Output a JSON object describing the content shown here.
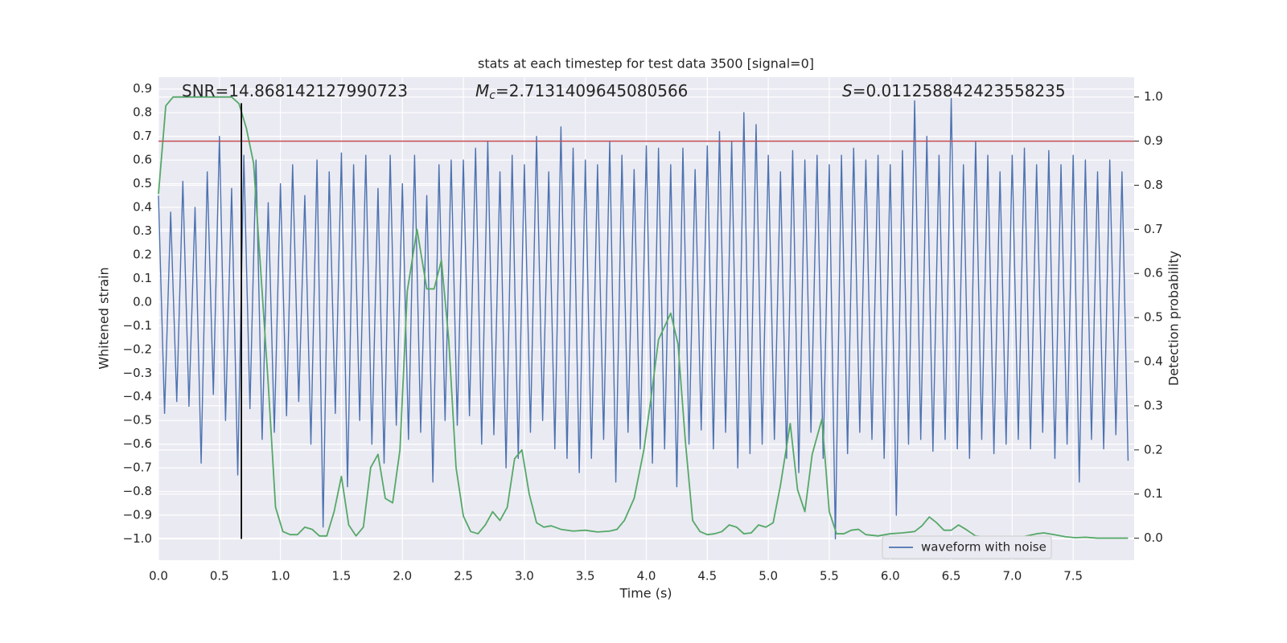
{
  "chart_data": {
    "type": "line",
    "title": "stats at each timestep for test data 3500 [signal=0]",
    "x_label": "Time (s)",
    "y_label": "Whitened strain",
    "y2_label": "Detection probability",
    "annotations": [
      {
        "text": "SNR=14.868142127990723"
      },
      {
        "symbol": "M",
        "sub": "c",
        "text": "=2.7131409645080566"
      },
      {
        "symbol": "S",
        "text": "=0.011258842423558235"
      }
    ],
    "xlim": [
      0,
      8
    ],
    "ylim": [
      -1.09,
      0.95
    ],
    "y2lim": [
      -0.05,
      1.045
    ],
    "xticks": [
      {
        "value": 0,
        "label": "0.0"
      },
      0.5,
      {
        "value": 1,
        "label": "1.0"
      },
      1.5,
      {
        "value": 2,
        "label": "2.0"
      },
      2.5,
      {
        "value": 3,
        "label": "3.0"
      },
      3.5,
      {
        "value": 4,
        "label": "4.0"
      },
      4.5,
      {
        "value": 5,
        "label": "5.0"
      },
      5.5,
      {
        "value": 6,
        "label": "6.0"
      },
      6.5,
      {
        "value": 7,
        "label": "7.0"
      },
      7.5
    ],
    "yticks": [
      {
        "value": -1,
        "label": "−1.0"
      },
      {
        "value": -0.9,
        "label": "−0.9"
      },
      {
        "value": -0.8,
        "label": "−0.8"
      },
      {
        "value": -0.7,
        "label": "−0.7"
      },
      {
        "value": -0.6,
        "label": "−0.6"
      },
      {
        "value": -0.5,
        "label": "−0.5"
      },
      {
        "value": -0.4,
        "label": "−0.4"
      },
      {
        "value": -0.3,
        "label": "−0.3"
      },
      {
        "value": -0.2,
        "label": "−0.2"
      },
      {
        "value": -0.1,
        "label": "−0.1"
      },
      {
        "value": 0,
        "label": "0.0"
      },
      0.1,
      0.2,
      0.3,
      0.4,
      0.5,
      0.6,
      0.7,
      0.8,
      0.9
    ],
    "y2ticks": [
      {
        "value": 0,
        "label": "0.0"
      },
      0.1,
      0.2,
      0.3,
      0.4,
      0.5,
      0.6,
      0.7,
      0.8,
      0.9,
      {
        "value": 1,
        "label": "1.0"
      }
    ],
    "grid": true,
    "legend": "lower right",
    "series": [
      {
        "name": "waveform with noise",
        "color": "#4c72b0",
        "x": [
          0,
          0.05,
          0.1,
          0.15,
          0.2,
          0.25,
          0.3,
          0.35,
          0.4,
          0.45,
          0.5,
          0.55,
          0.6,
          0.65,
          0.7,
          0.75,
          0.8,
          0.85,
          0.9,
          0.95,
          1,
          1.05,
          1.1,
          1.15,
          1.2,
          1.25,
          1.3,
          1.35,
          1.4,
          1.45,
          1.5,
          1.55,
          1.6,
          1.65,
          1.7,
          1.75,
          1.8,
          1.85,
          1.9,
          1.95,
          2,
          2.05,
          2.1,
          2.15,
          2.2,
          2.25,
          2.3,
          2.35,
          2.4,
          2.45,
          2.5,
          2.55,
          2.6,
          2.65,
          2.7,
          2.75,
          2.8,
          2.85,
          2.9,
          2.95,
          3,
          3.05,
          3.1,
          3.15,
          3.2,
          3.25,
          3.3,
          3.35,
          3.4,
          3.45,
          3.5,
          3.55,
          3.6,
          3.65,
          3.7,
          3.75,
          3.8,
          3.85,
          3.9,
          3.95,
          4,
          4.05,
          4.1,
          4.15,
          4.2,
          4.25,
          4.3,
          4.35,
          4.4,
          4.45,
          4.5,
          4.55,
          4.6,
          4.65,
          4.7,
          4.75,
          4.8,
          4.85,
          4.9,
          4.95,
          5,
          5.05,
          5.1,
          5.15,
          5.2,
          5.25,
          5.3,
          5.35,
          5.4,
          5.45,
          5.5,
          5.55,
          5.6,
          5.65,
          5.7,
          5.75,
          5.8,
          5.85,
          5.9,
          5.95,
          6,
          6.05,
          6.1,
          6.15,
          6.2,
          6.25,
          6.3,
          6.35,
          6.4,
          6.45,
          6.5,
          6.55,
          6.6,
          6.65,
          6.7,
          6.75,
          6.8,
          6.85,
          6.9,
          6.95,
          7,
          7.05,
          7.1,
          7.15,
          7.2,
          7.25,
          7.3,
          7.35,
          7.4,
          7.45,
          7.5,
          7.55,
          7.6,
          7.65,
          7.7,
          7.75,
          7.8,
          7.85,
          7.9,
          7.95
        ],
        "values": [
          0.45,
          -0.47,
          0.38,
          -0.42,
          0.51,
          -0.44,
          0.4,
          -0.68,
          0.55,
          -0.39,
          0.7,
          -0.5,
          0.48,
          -0.73,
          0.62,
          -0.45,
          0.6,
          -0.58,
          0.42,
          -0.55,
          0.5,
          -0.48,
          0.58,
          -0.42,
          0.45,
          -0.6,
          0.6,
          -0.95,
          0.55,
          -0.47,
          0.63,
          -0.78,
          0.58,
          -0.5,
          0.62,
          -0.6,
          0.48,
          -0.68,
          0.62,
          -0.52,
          0.5,
          -0.58,
          0.62,
          -0.55,
          0.45,
          -0.76,
          0.58,
          -0.5,
          0.6,
          -0.52,
          0.6,
          -0.48,
          0.65,
          -0.6,
          0.68,
          -0.56,
          0.55,
          -0.7,
          0.62,
          -0.66,
          0.58,
          -0.55,
          0.7,
          -0.5,
          0.55,
          -0.62,
          0.74,
          -0.66,
          0.65,
          -0.72,
          0.6,
          -0.66,
          0.58,
          -0.58,
          0.68,
          -0.76,
          0.62,
          -0.55,
          0.56,
          -0.62,
          0.66,
          -0.68,
          0.65,
          -0.62,
          0.58,
          -0.78,
          0.65,
          -0.6,
          0.56,
          -0.54,
          0.66,
          -0.62,
          0.72,
          -0.55,
          0.68,
          -0.7,
          0.8,
          -0.64,
          0.75,
          -0.6,
          0.62,
          -0.58,
          0.55,
          -0.66,
          0.64,
          -0.72,
          0.6,
          -0.55,
          0.62,
          -0.66,
          0.58,
          -1.0,
          0.62,
          -0.64,
          0.65,
          -0.55,
          0.6,
          -0.58,
          0.62,
          -0.66,
          0.58,
          -0.9,
          0.64,
          -0.6,
          0.85,
          -0.58,
          0.7,
          -0.63,
          0.62,
          -0.58,
          0.86,
          -0.62,
          0.58,
          -0.66,
          0.68,
          -0.58,
          0.62,
          -0.64,
          0.55,
          -0.6,
          0.62,
          -0.58,
          0.65,
          -0.62,
          0.58,
          -0.55,
          0.64,
          -0.66,
          0.58,
          -0.6,
          0.62,
          -0.76,
          0.6,
          -0.58,
          0.55,
          -0.62,
          0.6,
          -0.56,
          0.55,
          -0.67
        ]
      },
      {
        "color": "#55a868",
        "axis": "y2",
        "x": [
          0,
          0.06,
          0.12,
          0.6,
          0.66,
          0.72,
          0.78,
          0.84,
          0.9,
          0.96,
          1.02,
          1.08,
          1.14,
          1.2,
          1.26,
          1.32,
          1.38,
          1.44,
          1.5,
          1.56,
          1.62,
          1.68,
          1.74,
          1.8,
          1.86,
          1.92,
          1.98,
          2.04,
          2.12,
          2.2,
          2.26,
          2.32,
          2.38,
          2.44,
          2.5,
          2.56,
          2.62,
          2.68,
          2.74,
          2.8,
          2.86,
          2.92,
          2.98,
          3.04,
          3.1,
          3.16,
          3.22,
          3.3,
          3.4,
          3.5,
          3.6,
          3.7,
          3.76,
          3.82,
          3.9,
          3.98,
          4.04,
          4.1,
          4.2,
          4.26,
          4.32,
          4.38,
          4.44,
          4.5,
          4.56,
          4.62,
          4.68,
          4.74,
          4.8,
          4.86,
          4.92,
          4.98,
          5.04,
          5.1,
          5.18,
          5.24,
          5.3,
          5.36,
          5.44,
          5.5,
          5.56,
          5.62,
          5.68,
          5.74,
          5.8,
          5.9,
          6,
          6.1,
          6.2,
          6.26,
          6.32,
          6.38,
          6.44,
          6.5,
          6.56,
          6.62,
          6.7,
          6.8,
          6.9,
          7,
          7.1,
          7.2,
          7.26,
          7.34,
          7.44,
          7.52,
          7.6,
          7.7,
          7.8,
          7.95
        ],
        "values": [
          0.78,
          0.98,
          1.0,
          1.0,
          0.985,
          0.93,
          0.85,
          0.6,
          0.35,
          0.07,
          0.015,
          0.008,
          0.008,
          0.025,
          0.02,
          0.005,
          0.005,
          0.06,
          0.14,
          0.03,
          0.005,
          0.025,
          0.16,
          0.19,
          0.09,
          0.08,
          0.2,
          0.56,
          0.7,
          0.565,
          0.565,
          0.63,
          0.45,
          0.16,
          0.05,
          0.015,
          0.01,
          0.03,
          0.06,
          0.04,
          0.07,
          0.18,
          0.2,
          0.1,
          0.035,
          0.025,
          0.028,
          0.02,
          0.016,
          0.018,
          0.014,
          0.016,
          0.02,
          0.04,
          0.09,
          0.2,
          0.32,
          0.45,
          0.51,
          0.44,
          0.22,
          0.04,
          0.015,
          0.008,
          0.01,
          0.015,
          0.03,
          0.025,
          0.01,
          0.012,
          0.03,
          0.025,
          0.035,
          0.12,
          0.26,
          0.11,
          0.06,
          0.19,
          0.27,
          0.06,
          0.01,
          0.01,
          0.018,
          0.02,
          0.008,
          0.005,
          0.01,
          0.012,
          0.015,
          0.028,
          0.048,
          0.035,
          0.018,
          0.018,
          0.03,
          0.02,
          0.005,
          0.002,
          0.002,
          0.003,
          0.004,
          0.01,
          0.012,
          0.008,
          0.003,
          0.001,
          0.002,
          0.0,
          0.0,
          0.0
        ]
      }
    ],
    "hline": {
      "y2": 0.9,
      "color": "#c44e52"
    },
    "vline": {
      "x": 0.68,
      "ylim": [
        -1.0,
        0.84
      ],
      "color": "#000000"
    }
  }
}
